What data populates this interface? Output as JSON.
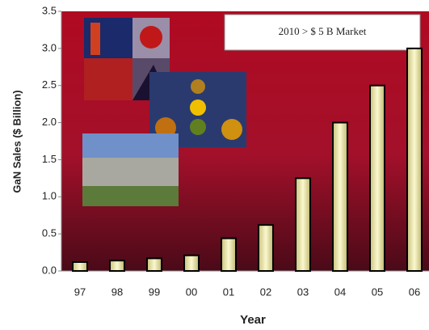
{
  "chart_data": {
    "type": "bar",
    "annotation": "2010 > $ 5 B Market",
    "xlabel": "Year",
    "ylabel": "GaN Sales ($ Billion)",
    "categories": [
      "97",
      "98",
      "99",
      "00",
      "01",
      "02",
      "03",
      "04",
      "05",
      "06"
    ],
    "values": [
      0.12,
      0.14,
      0.17,
      0.21,
      0.44,
      0.62,
      1.25,
      2.0,
      2.5,
      3.0
    ],
    "color": "#f3efb0",
    "ylim": [
      0,
      3.5
    ],
    "yticks": [
      {
        "value": 0,
        "label": "0.0"
      },
      {
        "value": 0.5,
        "label": "0.5"
      },
      {
        "value": 1,
        "label": "1.0"
      },
      {
        "value": 1.5,
        "label": "1.5"
      },
      {
        "value": 2,
        "label": "2.0"
      },
      {
        "value": 2.5,
        "label": "2.5"
      },
      {
        "value": 3,
        "label": "3.0"
      },
      {
        "value": 3.5,
        "label": "3.5"
      }
    ]
  }
}
